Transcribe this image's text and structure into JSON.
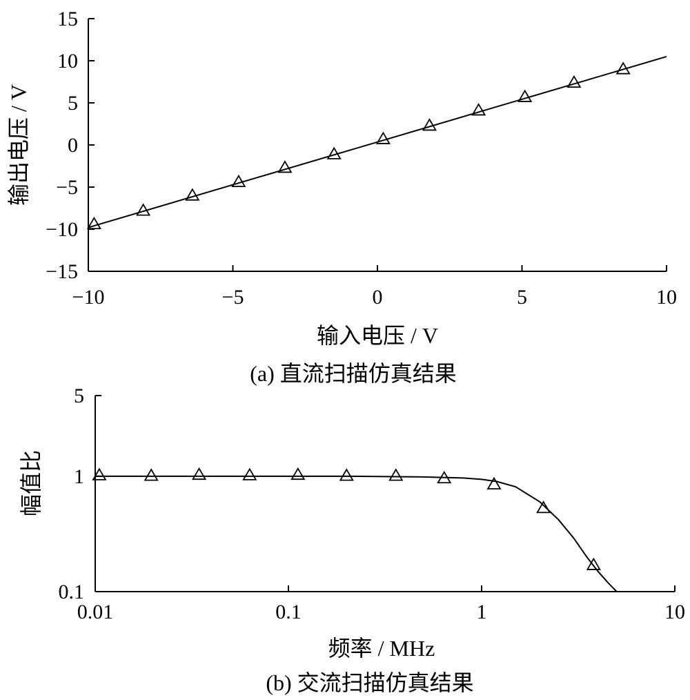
{
  "chart_data": [
    {
      "type": "line",
      "title": "",
      "caption": "(a)  直流扫描仿真结果",
      "xlabel": "输入电压 / V",
      "ylabel": "输出电压 / V",
      "xlim": [
        -10,
        10
      ],
      "ylim": [
        -15,
        15
      ],
      "x_ticks": [
        -10,
        -5,
        0,
        5,
        10
      ],
      "y_ticks": [
        -15,
        -10,
        -5,
        0,
        5,
        10,
        15
      ],
      "x_tick_labels": [
        "−10",
        "−5",
        "0",
        "5",
        "10"
      ],
      "y_tick_labels": [
        "−15",
        "−10",
        "−5",
        "0",
        "5",
        "10",
        "15"
      ],
      "x_scale": "linear",
      "y_scale": "linear",
      "grid": false,
      "series": [
        {
          "style": "line",
          "x": [
            -10,
            10
          ],
          "y": [
            -9.8,
            10.5
          ]
        },
        {
          "style": "triangle-markers",
          "x": [
            -9.8,
            -8.1,
            -6.4,
            -4.8,
            -3.2,
            -1.5,
            0.2,
            1.8,
            3.5,
            5.1,
            6.8,
            8.5
          ],
          "y": [
            -9.4,
            -7.8,
            -6.0,
            -4.4,
            -2.7,
            -1.1,
            0.7,
            2.3,
            4.1,
            5.7,
            7.4,
            9.0
          ]
        }
      ]
    },
    {
      "type": "line",
      "title": "",
      "caption": "(b)  交流扫描仿真结果",
      "xlabel": "频率 / MHz",
      "ylabel": "幅值比",
      "xlim": [
        0.01,
        10
      ],
      "ylim": [
        0.1,
        5
      ],
      "x_ticks": [
        0.01,
        0.1,
        1,
        10
      ],
      "y_ticks": [
        0.1,
        1,
        5
      ],
      "x_tick_labels": [
        "0.01",
        "0.1",
        "1",
        "10"
      ],
      "y_tick_labels": [
        "0.1",
        "1",
        "5"
      ],
      "x_scale": "log",
      "y_scale": "log",
      "grid": false,
      "series": [
        {
          "style": "line",
          "x": [
            0.01,
            0.05,
            0.2,
            0.5,
            0.8,
            1.0,
            1.2,
            1.5,
            2.0,
            2.5,
            3.0,
            3.5,
            4.0,
            4.5,
            5.0
          ],
          "y": [
            1.0,
            1.0,
            1.0,
            0.985,
            0.965,
            0.94,
            0.9,
            0.81,
            0.6,
            0.42,
            0.29,
            0.2,
            0.15,
            0.12,
            0.1
          ]
        },
        {
          "style": "triangle-markers",
          "x": [
            0.0105,
            0.0195,
            0.0345,
            0.063,
            0.112,
            0.2,
            0.36,
            0.64,
            1.16,
            2.09,
            3.8
          ],
          "y": [
            1.02,
            1.01,
            1.03,
            1.02,
            1.03,
            1.01,
            1.01,
            0.96,
            0.85,
            0.53,
            0.17
          ]
        }
      ]
    }
  ]
}
